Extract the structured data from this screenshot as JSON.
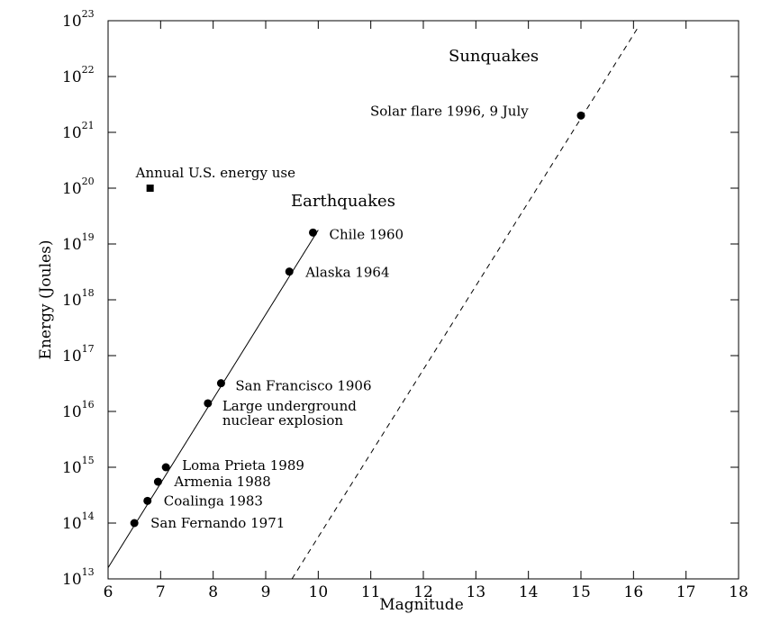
{
  "chart_data": {
    "type": "scatter",
    "title": "",
    "xlabel": "Magnitude",
    "ylabel": "Energy (Joules)",
    "xlim": [
      6,
      18
    ],
    "ylim_log10": [
      13,
      23
    ],
    "y_scale": "log",
    "x_ticks": [
      "6",
      "7",
      "8",
      "9",
      "10",
      "11",
      "12",
      "13",
      "14",
      "15",
      "16",
      "17",
      "18"
    ],
    "y_ticks": [
      {
        "base": "10",
        "exp": "13"
      },
      {
        "base": "10",
        "exp": "14"
      },
      {
        "base": "10",
        "exp": "15"
      },
      {
        "base": "10",
        "exp": "16"
      },
      {
        "base": "10",
        "exp": "17"
      },
      {
        "base": "10",
        "exp": "18"
      },
      {
        "base": "10",
        "exp": "19"
      },
      {
        "base": "10",
        "exp": "20"
      },
      {
        "base": "10",
        "exp": "21"
      },
      {
        "base": "10",
        "exp": "22"
      },
      {
        "base": "10",
        "exp": "23"
      }
    ],
    "region_labels": [
      "Earthquakes",
      "Sunquakes"
    ],
    "lines": [
      {
        "style": "solid",
        "x": [
          6.0,
          10.0
        ],
        "log10_y": [
          13.2,
          19.25
        ]
      },
      {
        "style": "dashed",
        "x": [
          9.5,
          16.1
        ],
        "log10_y": [
          13.0,
          22.9
        ]
      }
    ],
    "points": [
      {
        "label": "San Fernando 1971",
        "x": 6.5,
        "y": 100000000000000.0,
        "marker": "circle"
      },
      {
        "label": "Coalinga 1983",
        "x": 6.75,
        "y": 250000000000000.0,
        "marker": "circle"
      },
      {
        "label": "Armenia 1988",
        "x": 6.95,
        "y": 550000000000000.0,
        "marker": "circle"
      },
      {
        "label": "Loma Prieta 1989",
        "x": 7.1,
        "y": 1000000000000000.0,
        "marker": "circle"
      },
      {
        "label": "Large underground nuclear explosion",
        "x": 7.9,
        "y": 1.4e+16,
        "marker": "circle"
      },
      {
        "label": "San Francisco 1906",
        "x": 8.15,
        "y": 3.2e+16,
        "marker": "circle"
      },
      {
        "label": "Alaska 1964",
        "x": 9.45,
        "y": 3.2e+18,
        "marker": "circle"
      },
      {
        "label": "Chile 1960",
        "x": 9.9,
        "y": 1.6e+19,
        "marker": "circle"
      },
      {
        "label": "Annual U.S. energy use",
        "x": 6.8,
        "y": 1e+20,
        "marker": "square"
      },
      {
        "label": "Solar flare 1996, 9 July",
        "x": 15.0,
        "y": 2e+21,
        "marker": "circle"
      }
    ]
  }
}
